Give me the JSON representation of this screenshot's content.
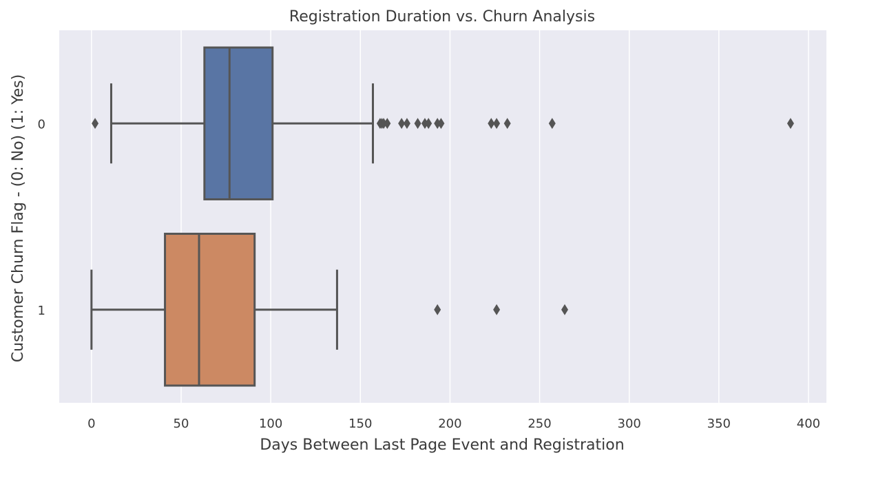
{
  "chart_data": {
    "type": "boxplot",
    "orientation": "horizontal",
    "title": "Registration Duration vs. Churn Analysis",
    "xlabel": "Days Between Last Page Event and Registration",
    "ylabel": "Customer Churn Flag - (0: No) (1: Yes)",
    "xlim": [
      -18,
      410
    ],
    "xticks": [
      0,
      50,
      100,
      150,
      200,
      250,
      300,
      350,
      400
    ],
    "grid": true,
    "legend": "none",
    "categories": [
      "0",
      "1"
    ],
    "series": [
      {
        "category": "0",
        "color": "#5975a4",
        "whisker_low": 11,
        "q1": 63,
        "median": 77,
        "q3": 101,
        "whisker_high": 157,
        "outliers": [
          2,
          161,
          162,
          163,
          165,
          173,
          176,
          182,
          186,
          188,
          193,
          195,
          223,
          226,
          232,
          257,
          390
        ]
      },
      {
        "category": "1",
        "color": "#cc8963",
        "whisker_low": 0,
        "q1": 41,
        "median": 60,
        "q3": 91,
        "whisker_high": 137,
        "outliers": [
          193,
          226,
          264
        ]
      }
    ]
  },
  "colors": {
    "plot_background": "#eaeaf2",
    "grid": "#ffffff",
    "box_edge": "#555555",
    "outlier": "#555555"
  }
}
